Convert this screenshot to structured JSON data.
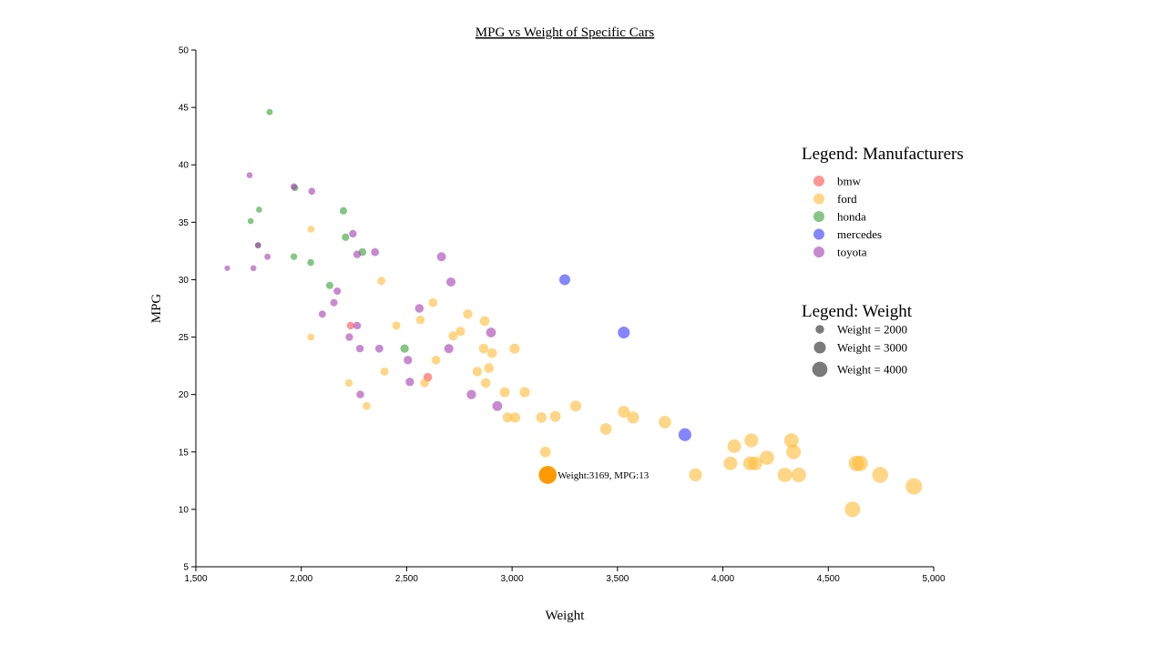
{
  "chart_data": {
    "type": "scatter",
    "title": "MPG vs Weight of Specific Cars",
    "xlabel": "Weight",
    "ylabel": "MPG",
    "xlim": [
      1500,
      5000
    ],
    "ylim": [
      5,
      50
    ],
    "x_ticks": [
      "1,500",
      "2,000",
      "2,500",
      "3,000",
      "3,500",
      "4,000",
      "4,500",
      "5,000"
    ],
    "y_ticks": [
      "5",
      "10",
      "15",
      "20",
      "25",
      "30",
      "35",
      "40",
      "45",
      "50"
    ],
    "grid": false,
    "size_encoding": "weight",
    "colors": {
      "bmw": "#ff4d4d",
      "ford": "#ffbb33",
      "honda": "#33a033",
      "mercedes": "#3333ff",
      "toyota": "#a33ab3",
      "highlight": "#ff9900"
    },
    "legend_manufacturers": {
      "title": "Legend: Manufacturers",
      "position": "right",
      "items": [
        "bmw",
        "ford",
        "honda",
        "mercedes",
        "toyota"
      ]
    },
    "legend_weight": {
      "title": "Legend: Weight",
      "items": [
        {
          "label": "Weight = 2000",
          "weight": 2000
        },
        {
          "label": "Weight = 3000",
          "weight": 3000
        },
        {
          "label": "Weight = 4000",
          "weight": 4000
        }
      ]
    },
    "highlight": {
      "x": 3169,
      "y": 13,
      "label": "Weight:3169, MPG:13"
    },
    "series": [
      {
        "name": "bmw",
        "points": [
          [
            2234,
            26
          ],
          [
            2600,
            21.5
          ]
        ]
      },
      {
        "name": "ford",
        "points": [
          [
            2046,
            25
          ],
          [
            2046,
            34.4
          ],
          [
            2226,
            21
          ],
          [
            2310,
            19
          ],
          [
            2380,
            29.9
          ],
          [
            2395,
            22
          ],
          [
            2451,
            26
          ],
          [
            2565,
            26.5
          ],
          [
            2585,
            21
          ],
          [
            2625,
            28
          ],
          [
            2639,
            23
          ],
          [
            2720,
            25.1
          ],
          [
            2755,
            25.5
          ],
          [
            2790,
            27
          ],
          [
            2835,
            22
          ],
          [
            2865,
            24
          ],
          [
            2870,
            26.4
          ],
          [
            2875,
            21
          ],
          [
            2890,
            22.3
          ],
          [
            2905,
            23.6
          ],
          [
            2965,
            20.2
          ],
          [
            2979,
            18
          ],
          [
            3015,
            18
          ],
          [
            3012,
            24
          ],
          [
            3060,
            20.2
          ],
          [
            3139,
            18
          ],
          [
            3158,
            15
          ],
          [
            3205,
            18.1
          ],
          [
            3302,
            19
          ],
          [
            3445,
            17
          ],
          [
            3530,
            18.5
          ],
          [
            3574,
            18
          ],
          [
            3725,
            17.6
          ],
          [
            3870,
            13
          ],
          [
            4036,
            14
          ],
          [
            4054,
            15.5
          ],
          [
            4129,
            14
          ],
          [
            4135,
            16
          ],
          [
            4154,
            14
          ],
          [
            4209,
            14.5
          ],
          [
            4294,
            13
          ],
          [
            4325,
            16
          ],
          [
            4335,
            15
          ],
          [
            4360,
            13
          ],
          [
            4615,
            10
          ],
          [
            4633,
            14
          ],
          [
            4651,
            14
          ],
          [
            4746,
            13
          ],
          [
            4906,
            12
          ]
        ]
      },
      {
        "name": "honda",
        "points": [
          [
            1850,
            44.6
          ],
          [
            1760,
            35.1
          ],
          [
            1795,
            33
          ],
          [
            1800,
            36.1
          ],
          [
            1965,
            32
          ],
          [
            1970,
            38
          ],
          [
            2045,
            31.5
          ],
          [
            2135,
            29.5
          ],
          [
            2200,
            36
          ],
          [
            2210,
            33.7
          ],
          [
            2290,
            32.4
          ],
          [
            2490,
            24
          ]
        ]
      },
      {
        "name": "mercedes",
        "points": [
          [
            3250,
            30
          ],
          [
            3530,
            25.4
          ],
          [
            3820,
            16.5
          ]
        ]
      },
      {
        "name": "toyota",
        "points": [
          [
            1649,
            31
          ],
          [
            1755,
            39.1
          ],
          [
            1773,
            31
          ],
          [
            1795,
            33
          ],
          [
            1840,
            32
          ],
          [
            1965,
            38.1
          ],
          [
            2050,
            37.7
          ],
          [
            2100,
            27
          ],
          [
            2155,
            28
          ],
          [
            2171,
            29
          ],
          [
            2228,
            25
          ],
          [
            2245,
            34
          ],
          [
            2265,
            26
          ],
          [
            2265,
            32.2
          ],
          [
            2278,
            24
          ],
          [
            2280,
            20
          ],
          [
            2350,
            32.4
          ],
          [
            2370,
            24
          ],
          [
            2506,
            23
          ],
          [
            2515,
            21.1
          ],
          [
            2560,
            27.5
          ],
          [
            2665,
            32
          ],
          [
            2700,
            24
          ],
          [
            2710,
            29.8
          ],
          [
            2807,
            20
          ],
          [
            2900,
            25.4
          ],
          [
            2930,
            19
          ]
        ]
      }
    ]
  }
}
